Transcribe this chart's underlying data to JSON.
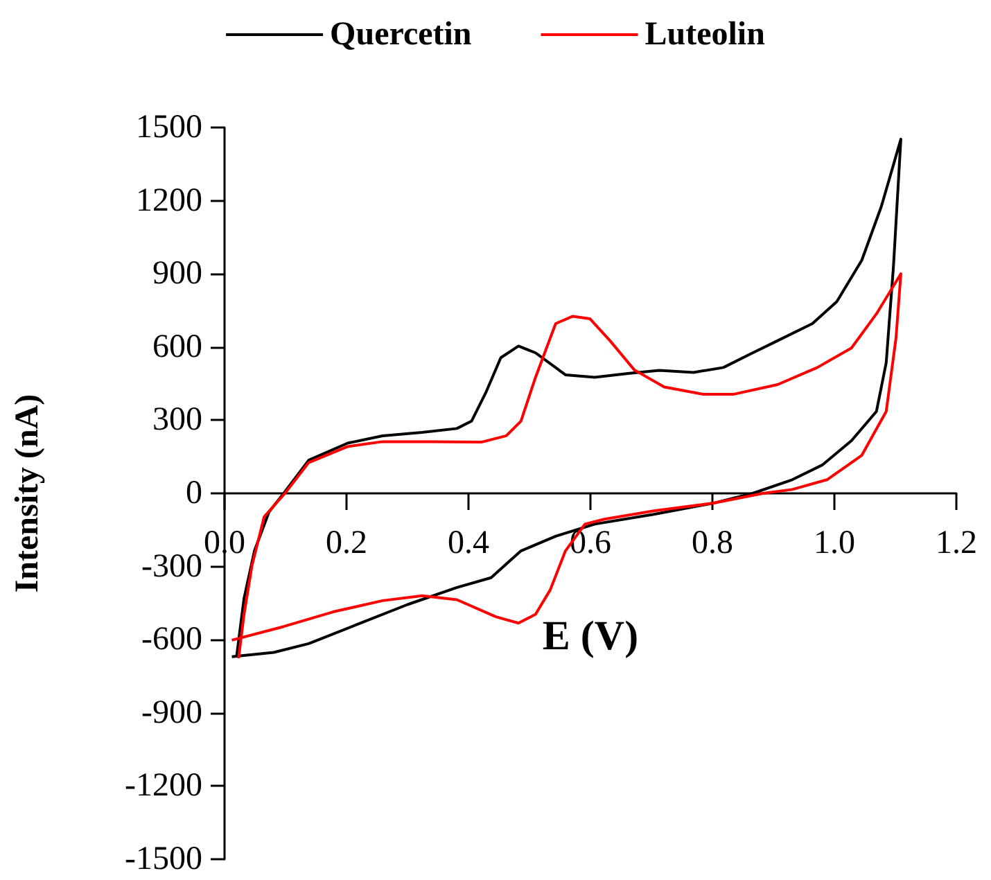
{
  "chart_data": {
    "type": "line",
    "xlabel": "E (V)",
    "ylabel": "Intensity (nA)",
    "xlim": [
      0,
      1.2
    ],
    "xticks": [
      {
        "value": 0,
        "label": "0.0"
      },
      0.2,
      0.4,
      0.6,
      0.8,
      {
        "value": 1,
        "label": "1.0"
      },
      1.2
    ],
    "ylim": [
      -1500,
      1500
    ],
    "yticks": [
      -1500,
      -1200,
      -900,
      -600,
      -300,
      0,
      300,
      600,
      900,
      1200,
      1500
    ],
    "grid": false,
    "legend": "top",
    "marker": "none",
    "line_style": "solid",
    "series": [
      {
        "name": "Quercetin",
        "color": "#000000",
        "x": [
          0.02,
          0.032,
          0.049,
          0.073,
          0.097,
          0.138,
          0.202,
          0.259,
          0.324,
          0.381,
          0.405,
          0.429,
          0.453,
          0.482,
          0.51,
          0.559,
          0.607,
          0.664,
          0.713,
          0.769,
          0.818,
          0.866,
          0.907,
          0.964,
          1.004,
          1.045,
          1.077,
          1.109,
          1.097,
          1.085,
          1.069,
          1.028,
          0.98,
          0.931,
          0.866,
          0.802,
          0.704,
          0.607,
          0.543,
          0.486,
          0.437,
          0.381,
          0.3,
          0.219,
          0.138,
          0.081,
          0.012
        ],
        "values": [
          -665,
          -430,
          -236,
          -76,
          0,
          136,
          206,
          236,
          250,
          266,
          296,
          416,
          556,
          604,
          576,
          486,
          476,
          492,
          504,
          496,
          516,
          576,
          626,
          696,
          786,
          956,
          1176,
          1452,
          936,
          536,
          336,
          216,
          116,
          56,
          0,
          -40,
          -86,
          -126,
          -176,
          -236,
          -346,
          -386,
          -456,
          -536,
          -616,
          -652,
          -670
        ]
      },
      {
        "name": "Luteolin",
        "color": "#ff0000",
        "x": [
          0.023,
          0.032,
          0.045,
          0.065,
          0.099,
          0.138,
          0.202,
          0.259,
          0.34,
          0.421,
          0.462,
          0.486,
          0.51,
          0.543,
          0.571,
          0.599,
          0.632,
          0.672,
          0.721,
          0.785,
          0.834,
          0.907,
          0.972,
          1.028,
          1.069,
          1.109,
          1.101,
          1.085,
          1.045,
          0.988,
          0.931,
          0.883,
          0.802,
          0.704,
          0.623,
          0.591,
          0.559,
          0.534,
          0.51,
          0.482,
          0.445,
          0.381,
          0.324,
          0.259,
          0.178,
          0.097,
          0.012
        ],
        "values": [
          -676,
          -496,
          -296,
          -96,
          0,
          126,
          192,
          212,
          212,
          210,
          236,
          296,
          476,
          696,
          726,
          716,
          626,
          506,
          436,
          406,
          406,
          446,
          516,
          596,
          736,
          900,
          636,
          336,
          156,
          56,
          16,
          0,
          -40,
          -72,
          -106,
          -126,
          -236,
          -396,
          -496,
          -532,
          -506,
          -436,
          -420,
          -440,
          -486,
          -546,
          -602
        ]
      }
    ]
  }
}
